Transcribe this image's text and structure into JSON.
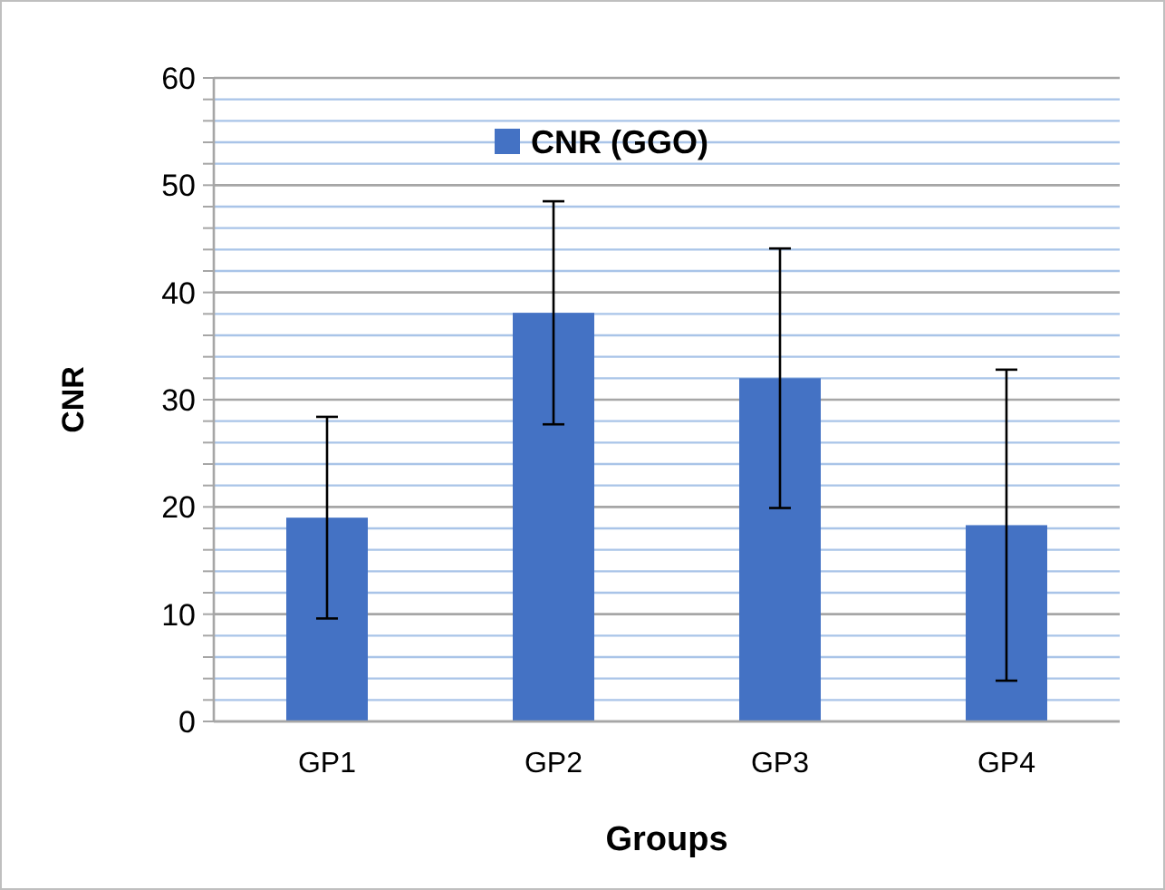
{
  "chart_data": {
    "type": "bar",
    "xlabel": "Groups",
    "ylabel": "CNR",
    "categories": [
      "GP1",
      "GP2",
      "GP3",
      "GP4"
    ],
    "series": [
      {
        "name": "CNR (GGO)",
        "color": "#4472c4",
        "values": [
          19,
          38.1,
          32,
          18.3
        ],
        "errors": [
          9.4,
          10.4,
          12.1,
          14.5
        ]
      }
    ],
    "ylim": [
      0,
      60
    ],
    "yticks": [
      0,
      {
        "value": 2,
        "label": null
      },
      {
        "value": 4,
        "label": null
      },
      {
        "value": 6,
        "label": null
      },
      {
        "value": 8,
        "label": null
      },
      10,
      {
        "value": 12,
        "label": null
      },
      {
        "value": 14,
        "label": null
      },
      {
        "value": 16,
        "label": null
      },
      {
        "value": 18,
        "label": null
      },
      20,
      {
        "value": 22,
        "label": null
      },
      {
        "value": 24,
        "label": null
      },
      {
        "value": 26,
        "label": null
      },
      {
        "value": 28,
        "label": null
      },
      30,
      {
        "value": 32,
        "label": null
      },
      {
        "value": 34,
        "label": null
      },
      {
        "value": 36,
        "label": null
      },
      {
        "value": 38,
        "label": null
      },
      40,
      {
        "value": 42,
        "label": null
      },
      {
        "value": 44,
        "label": null
      },
      {
        "value": 46,
        "label": null
      },
      {
        "value": 48,
        "label": null
      },
      50,
      {
        "value": 52,
        "label": null
      },
      {
        "value": 54,
        "label": null
      },
      {
        "value": 56,
        "label": null
      },
      {
        "value": 58,
        "label": null
      },
      60
    ],
    "grid": true,
    "legend": "top"
  }
}
